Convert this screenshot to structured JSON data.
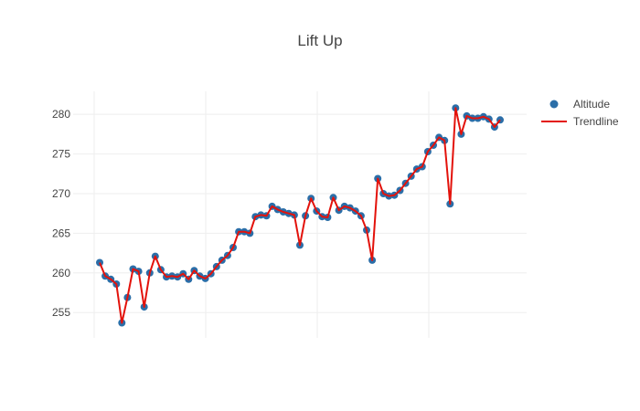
{
  "chart_data": {
    "type": "line",
    "title": "Lift Up",
    "xlabel": "",
    "ylabel": "",
    "grid": true,
    "legend_position": "top-right",
    "x_tick_labels": [],
    "y_ticks": [
      255,
      260,
      265,
      270,
      275,
      280
    ],
    "ylim": [
      251.8,
      282.9
    ],
    "colors": {
      "marker": "#2b6ea8",
      "line": "#e3120b"
    },
    "series": [
      {
        "name": "Altitude",
        "mode": "markers",
        "values": [
          261.3,
          259.6,
          259.2,
          258.6,
          253.7,
          256.9,
          260.5,
          260.2,
          255.7,
          260.0,
          262.1,
          260.4,
          259.5,
          259.6,
          259.5,
          259.9,
          259.2,
          260.3,
          259.6,
          259.3,
          259.9,
          260.8,
          261.6,
          262.2,
          263.2,
          265.2,
          265.2,
          265.0,
          267.1,
          267.3,
          267.2,
          268.4,
          268.0,
          267.7,
          267.5,
          267.3,
          263.5,
          267.2,
          269.4,
          267.8,
          267.1,
          267.0,
          269.5,
          267.9,
          268.4,
          268.2,
          267.8,
          267.2,
          265.4,
          261.6,
          271.9,
          270.0,
          269.7,
          269.8,
          270.4,
          271.3,
          272.2,
          273.1,
          273.4,
          275.3,
          276.1,
          277.1,
          276.7,
          268.7,
          280.8,
          277.5,
          279.8,
          279.5,
          279.5,
          279.7,
          279.4,
          278.4,
          279.3
        ]
      },
      {
        "name": "Trendline",
        "mode": "lines",
        "values": [
          261.3,
          259.6,
          259.2,
          258.6,
          253.7,
          256.9,
          260.5,
          260.2,
          255.7,
          260.0,
          262.1,
          260.4,
          259.5,
          259.6,
          259.5,
          259.9,
          259.2,
          260.3,
          259.6,
          259.3,
          259.9,
          260.8,
          261.6,
          262.2,
          263.2,
          265.2,
          265.2,
          265.0,
          267.1,
          267.3,
          267.2,
          268.4,
          268.0,
          267.7,
          267.5,
          267.3,
          263.5,
          267.2,
          269.4,
          267.8,
          267.1,
          267.0,
          269.5,
          267.9,
          268.4,
          268.2,
          267.8,
          267.2,
          265.4,
          261.6,
          271.9,
          270.0,
          269.7,
          269.8,
          270.4,
          271.3,
          272.2,
          273.1,
          273.4,
          275.3,
          276.1,
          277.1,
          276.7,
          268.7,
          280.8,
          277.5,
          279.8,
          279.5,
          279.5,
          279.7,
          279.4,
          278.4,
          279.3
        ]
      }
    ]
  }
}
